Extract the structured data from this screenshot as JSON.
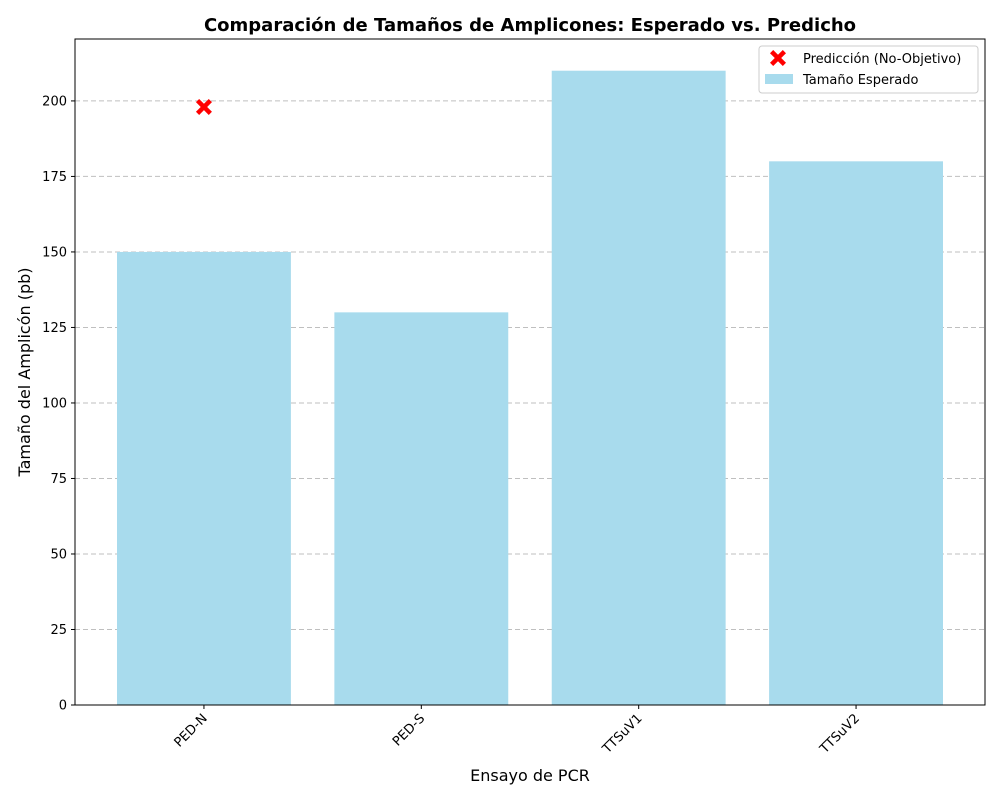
{
  "chart_data": {
    "type": "bar",
    "title": "Comparación de Tamaños de Amplicones: Esperado vs. Predicho",
    "xlabel": "Ensayo de PCR",
    "ylabel": "Tamaño del Amplicón (pb)",
    "categories": [
      "PED-N",
      "PED-S",
      "TTSuV1",
      "TTSuV2"
    ],
    "ylim": [
      0,
      220.5
    ],
    "yticks": [
      0,
      25,
      50,
      75,
      100,
      125,
      150,
      175,
      200
    ],
    "grid": "y-dashed",
    "legend_position": "top-right",
    "series": [
      {
        "name": "Tamaño Esperado",
        "kind": "bar",
        "color": "#a8dbed",
        "values": [
          150,
          130,
          210,
          180
        ]
      },
      {
        "name": "Predicción (No-Objetivo)",
        "kind": "marker",
        "marker": "X",
        "color": "#ff0000",
        "points": [
          {
            "category": "PED-N",
            "value": 198
          }
        ]
      }
    ]
  }
}
